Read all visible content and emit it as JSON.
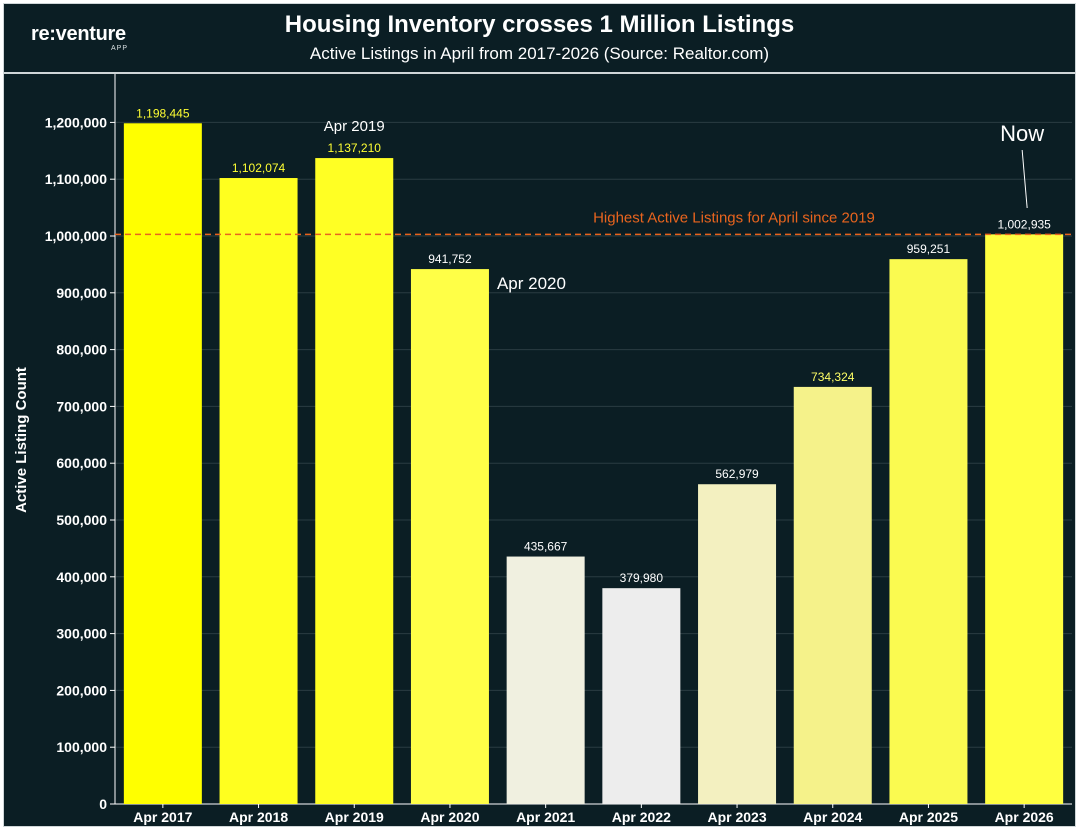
{
  "brand": {
    "name": "re:venture",
    "sub": "APP"
  },
  "header": {
    "title": "Housing Inventory crosses 1 Million Listings",
    "subtitle": "Active Listings in April from 2017-2026 (Source: Realtor.com)"
  },
  "chart_data": {
    "type": "bar",
    "ylabel": "Active Listing Count",
    "xlabel": "",
    "ylim": [
      0,
      1300000
    ],
    "yticks": [
      0,
      100000,
      200000,
      300000,
      400000,
      500000,
      600000,
      700000,
      800000,
      900000,
      1000000,
      1100000,
      1200000
    ],
    "ytick_labels": [
      "0",
      "100,000",
      "200,000",
      "300,000",
      "400,000",
      "500,000",
      "600,000",
      "700,000",
      "800,000",
      "900,000",
      "1,000,000",
      "1,100,000",
      "1,200,000"
    ],
    "categories": [
      "Apr 2017",
      "Apr 2018",
      "Apr 2019",
      "Apr 2020",
      "Apr 2021",
      "Apr 2022",
      "Apr 2023",
      "Apr 2024",
      "Apr 2025",
      "Apr 2026"
    ],
    "values": [
      1198445,
      1102074,
      1137210,
      941752,
      435667,
      379980,
      562979,
      734324,
      959251,
      1002935
    ],
    "value_labels": [
      "1,198,445",
      "1,102,074",
      "1,137,210",
      "941,752",
      "435,667",
      "379,980",
      "562,979",
      "734,324",
      "959,251",
      "1,002,935"
    ],
    "bar_colors": [
      "#ffff00",
      "#ffff1f",
      "#ffff24",
      "#ffff47",
      "#f0f0e0",
      "#ededed",
      "#f3f0c0",
      "#f5f28a",
      "#fafa50",
      "#ffff40"
    ],
    "value_label_colors": [
      "#ffff33",
      "#ffff33",
      "#ffff33",
      "#ffffff",
      "#ffffff",
      "#ffffff",
      "#ffffff",
      "#ffff66",
      "#ffffff",
      "#ffffff"
    ],
    "reference_line": {
      "value": 1002935,
      "label": "Highest Active Listings for April since 2019",
      "color": "#e8641e"
    },
    "annotations": [
      {
        "text": "Apr 2019",
        "category": "Apr 2019"
      },
      {
        "text": "Apr 2020",
        "category": "Apr 2020"
      },
      {
        "text": "Now",
        "category": "Apr 2026"
      }
    ],
    "grid": true
  }
}
